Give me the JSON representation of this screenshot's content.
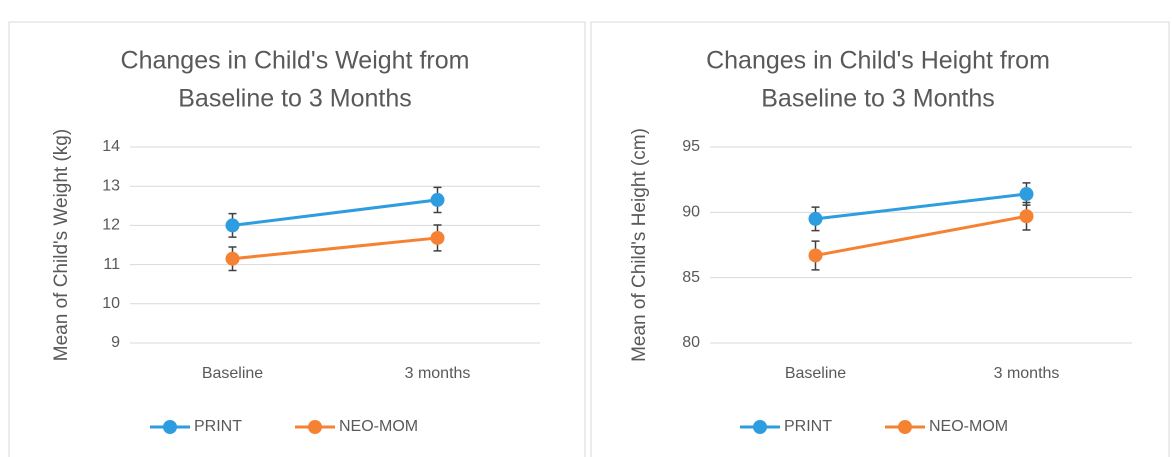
{
  "chart_data": [
    {
      "type": "line",
      "title": [
        "Changes in Child's Weight from",
        "Baseline to 3 Months"
      ],
      "y_label": "Mean of Child's Weight (kg)",
      "categories": [
        "Baseline",
        "3 months"
      ],
      "ylim": [
        9,
        14
      ],
      "yticks": [
        9,
        10,
        11,
        12,
        13,
        14
      ],
      "grid": true,
      "series": [
        {
          "name": "PRINT",
          "color": "#2e9de0",
          "values": [
            12.0,
            12.65
          ],
          "errors": [
            0.3,
            0.32
          ]
        },
        {
          "name": "NEO-MOM",
          "color": "#f58232",
          "values": [
            11.15,
            11.68
          ],
          "errors": [
            0.3,
            0.33
          ]
        }
      ]
    },
    {
      "type": "line",
      "title": [
        "Changes in Child's Height from",
        "Baseline to 3 Months"
      ],
      "y_label": "Mean of Child's Height (cm)",
      "categories": [
        "Baseline",
        "3 months"
      ],
      "ylim": [
        80,
        95
      ],
      "yticks": [
        80,
        85,
        90,
        95
      ],
      "grid": true,
      "series": [
        {
          "name": "PRINT",
          "color": "#2e9de0",
          "values": [
            89.5,
            91.4
          ],
          "errors": [
            0.9,
            0.85
          ]
        },
        {
          "name": "NEO-MOM",
          "color": "#f58232",
          "values": [
            86.7,
            89.7
          ],
          "errors": [
            1.1,
            1.05
          ]
        }
      ]
    }
  ]
}
